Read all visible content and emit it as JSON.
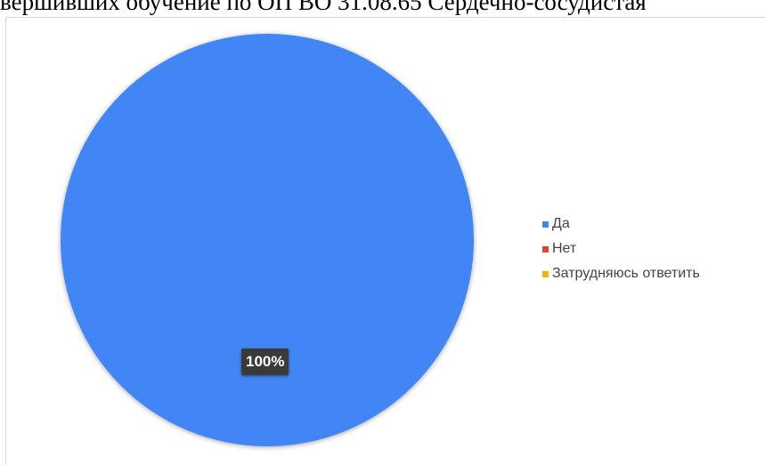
{
  "page": {
    "header_text": "вершивших обучение по ОП ВО 31.08.65 Сердечно-сосудистая"
  },
  "chart_data": {
    "type": "pie",
    "title": "",
    "legend_position": "right",
    "series": [
      {
        "name": "Да",
        "value": 100,
        "label": "100%",
        "color": "#4285f4"
      },
      {
        "name": "Нет",
        "value": 0,
        "label": "",
        "color": "#db4437"
      },
      {
        "name": "Затрудняюсь ответить",
        "value": 0,
        "label": "",
        "color": "#f4b400"
      }
    ]
  }
}
